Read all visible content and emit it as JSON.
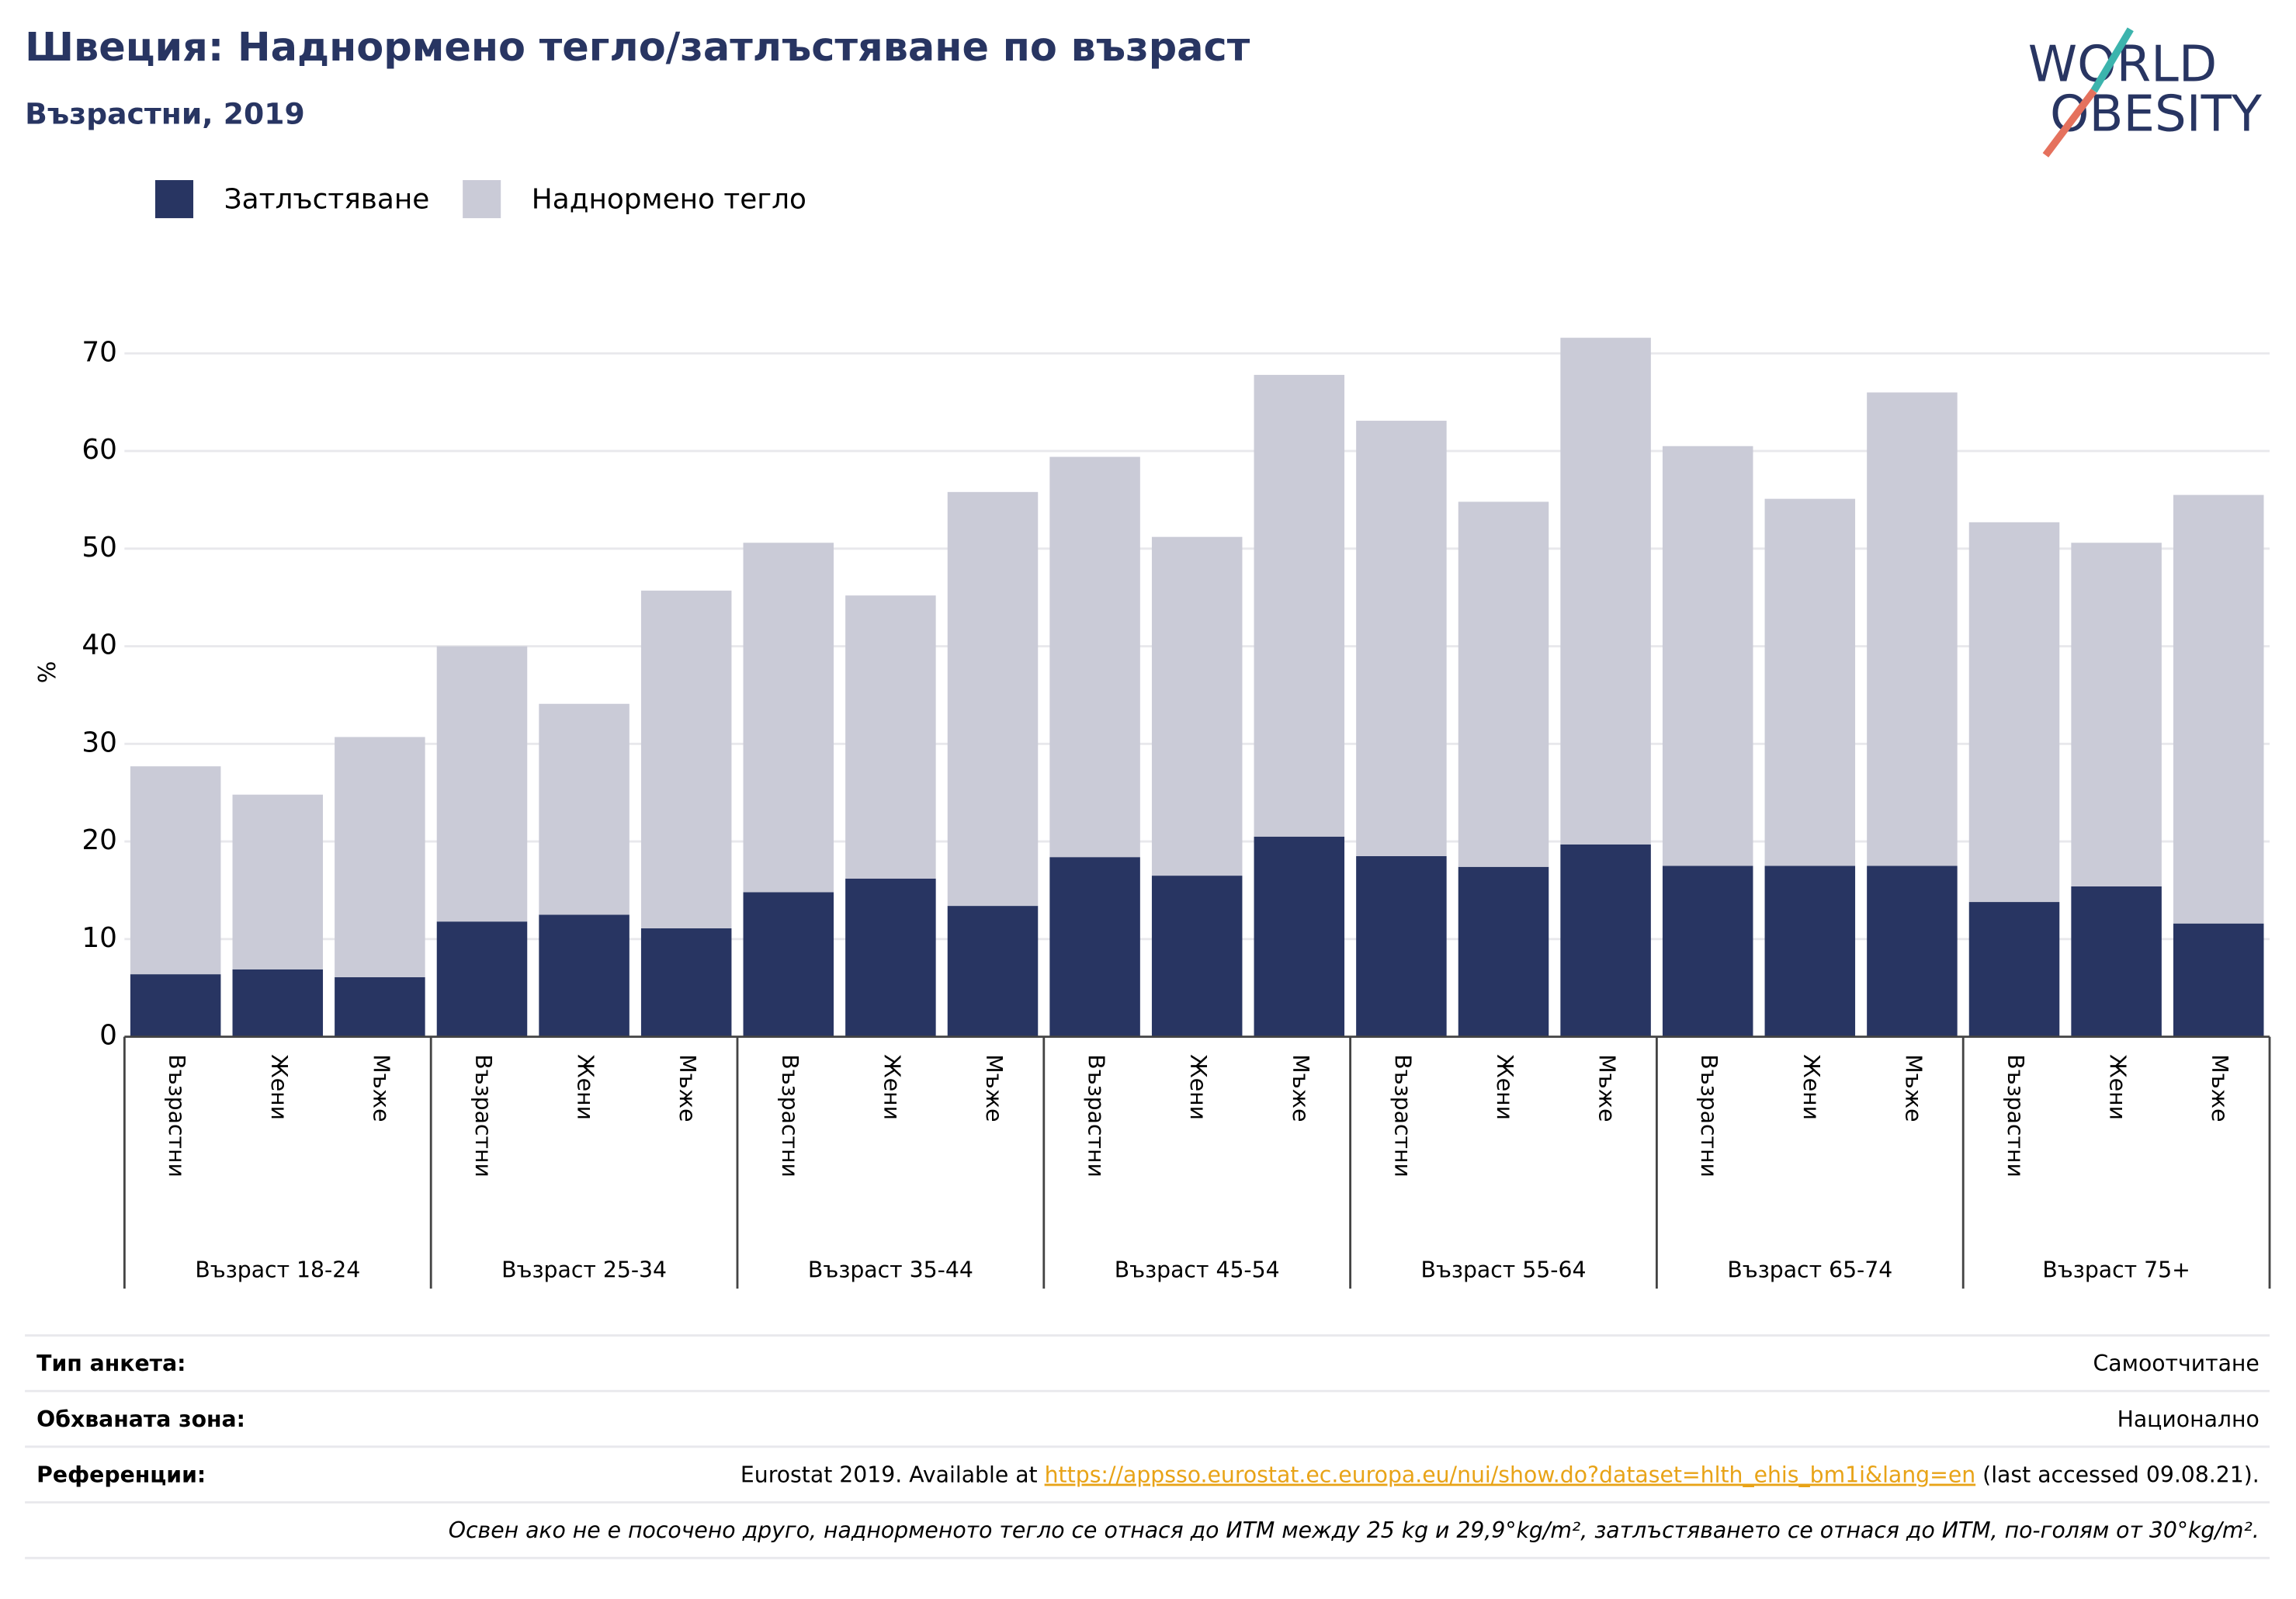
{
  "chart_data": {
    "type": "stacked_bar",
    "title": "Швеция: Наднормено тегло/затлъстяване по възраст",
    "subtitle": "Възрастни, 2019",
    "logo": [
      "WORLD",
      "OBESITY"
    ],
    "y_label": "%",
    "groups": [
      {
        "name": "Възраст 18-24",
        "categories": [
          "Възрастни",
          "Жени",
          "Мъже"
        ]
      },
      {
        "name": "Възраст 25-34",
        "categories": [
          "Възрастни",
          "Жени",
          "Мъже"
        ]
      },
      {
        "name": "Възраст 35-44",
        "categories": [
          "Възрастни",
          "Жени",
          "Мъже"
        ]
      },
      {
        "name": "Възраст 45-54",
        "categories": [
          "Възрастни",
          "Жени",
          "Мъже"
        ]
      },
      {
        "name": "Възраст 55-64",
        "categories": [
          "Възрастни",
          "Жени",
          "Мъже"
        ]
      },
      {
        "name": "Възраст 65-74",
        "categories": [
          "Възрастни",
          "Жени",
          "Мъже"
        ]
      },
      {
        "name": "Възраст 75+",
        "categories": [
          "Възрастни",
          "Жени",
          "Мъже"
        ]
      }
    ],
    "series": [
      {
        "name": "Затлъстяване",
        "color": "#283562",
        "values": [
          6.4,
          6.9,
          6.1,
          11.8,
          12.5,
          11.1,
          14.8,
          16.2,
          13.4,
          18.4,
          16.5,
          20.5,
          18.5,
          17.4,
          19.7,
          17.5,
          17.5,
          17.5,
          13.8,
          15.4,
          11.6
        ]
      },
      {
        "name": "Наднормено тегло",
        "color": "#cacbd7",
        "values": [
          21.3,
          17.9,
          24.6,
          28.2,
          21.6,
          34.6,
          35.8,
          29.0,
          42.4,
          41.0,
          34.7,
          47.3,
          44.6,
          37.4,
          51.9,
          43.0,
          37.6,
          48.5,
          38.9,
          35.2,
          43.9
        ]
      }
    ],
    "ylim": [
      0,
      75
    ],
    "yticks": [
      0,
      10,
      20,
      30,
      40,
      50,
      60,
      70
    ],
    "grid": true
  },
  "footer": {
    "rows": [
      {
        "label": "Тип анкета:",
        "value": "Самоотчитане"
      },
      {
        "label": "Обхваната зона:",
        "value": "Национално"
      }
    ],
    "references": {
      "label": "Референции:",
      "prefix": "Eurostat 2019. Available at ",
      "link": "https://appsso.eurostat.ec.europa.eu/nui/show.do?dataset=hlth_ehis_bm1i&lang=en",
      "suffix": " (last accessed 09.08.21)."
    },
    "note": "Освен ако не е посочено друго, наднорменото тегло се отнася до ИТМ между 25 kg и 29,9°kg/m², затлъстяването се отнася до ИТМ, по-голям от 30°kg/m²."
  }
}
